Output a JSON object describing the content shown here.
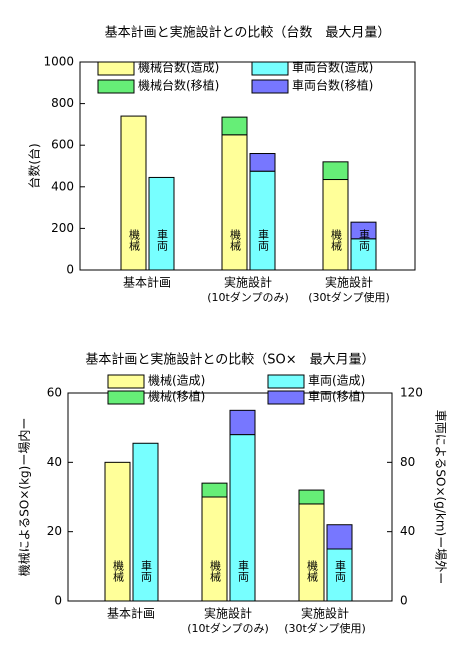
{
  "chart_data": [
    {
      "type": "bar",
      "title": "基本計画と実施設計との比較（台数　最大月量）",
      "ylabel": "台数(台)",
      "categories": [
        [
          "基本計画"
        ],
        [
          "実施設計",
          "(10tダンプのみ)"
        ],
        [
          "実施設計",
          "(30tダンプ使用)"
        ]
      ],
      "bar_labels": [
        "機械",
        "車両"
      ],
      "series": [
        {
          "name": "機械台数(造成)",
          "color": "#ffff99",
          "values": [
            740,
            650,
            435
          ]
        },
        {
          "name": "機械台数(移植)",
          "color": "#66ee77",
          "values": [
            0,
            85,
            85
          ]
        },
        {
          "name": "車両台数(造成)",
          "color": "#77ffff",
          "values": [
            445,
            475,
            150
          ]
        },
        {
          "name": "車両台数(移植)",
          "color": "#7777ff",
          "values": [
            0,
            85,
            80
          ]
        }
      ],
      "ylim": [
        0,
        1000
      ],
      "yticks": [
        0,
        200,
        400,
        600,
        800,
        1000
      ],
      "grid": false
    },
    {
      "type": "bar",
      "title": "基本計画と実施設計との比較（SO×　最大月量）",
      "ylabel": "機械によるSO×(kg)ー場内ー",
      "y2label": "車両によるSO×(g/km)ー場外ー",
      "categories": [
        [
          "基本計画"
        ],
        [
          "実施設計",
          "(10tダンプのみ)"
        ],
        [
          "実施設計",
          "(30tダンプ使用)"
        ]
      ],
      "bar_labels": [
        "機械",
        "車両"
      ],
      "series": [
        {
          "name": "機械(造成)",
          "color": "#ffff99",
          "values": [
            40,
            30,
            28
          ]
        },
        {
          "name": "機械(移植)",
          "color": "#66ee77",
          "values": [
            0,
            4,
            4
          ]
        },
        {
          "name": "車両(造成)",
          "color": "#77ffff",
          "values": [
            91,
            96,
            30
          ],
          "axis": "y2"
        },
        {
          "name": "車両(移植)",
          "color": "#7777ff",
          "values": [
            0,
            14,
            14
          ],
          "axis": "y2"
        }
      ],
      "ylim": [
        0,
        60
      ],
      "yticks": [
        0,
        20,
        40,
        60
      ],
      "y2lim": [
        0,
        120
      ],
      "y2ticks": [
        0,
        40,
        80,
        120
      ],
      "grid": false
    }
  ]
}
